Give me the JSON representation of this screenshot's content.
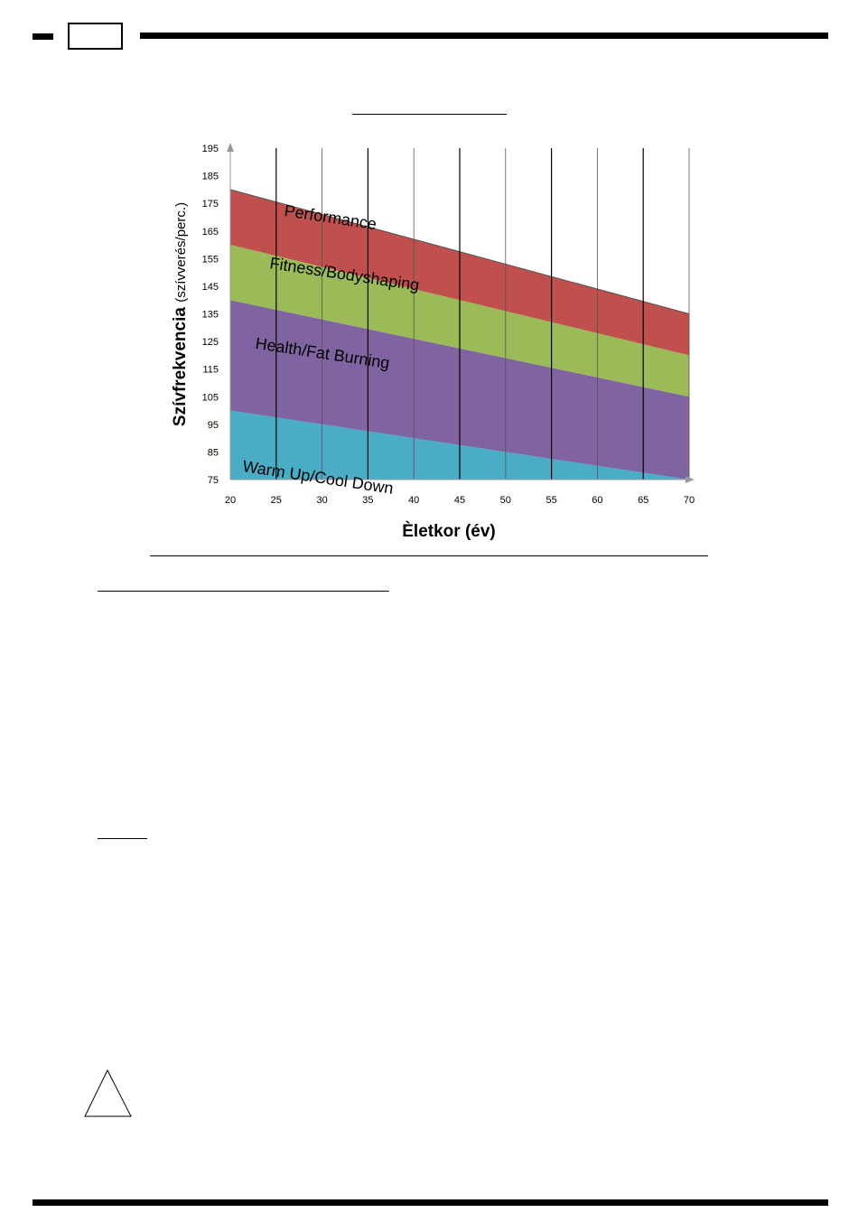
{
  "chart_data": {
    "type": "area",
    "title": "",
    "xlabel": "Èletkor (év)",
    "ylabel_bold": "Szívfrekvencia",
    "ylabel_unit": "(szívverés/perc.)",
    "x": [
      20,
      70
    ],
    "x_ticks": [
      20,
      25,
      30,
      35,
      40,
      45,
      50,
      55,
      60,
      65,
      70
    ],
    "y_ticks": [
      75,
      85,
      95,
      105,
      115,
      125,
      135,
      145,
      155,
      165,
      175,
      185,
      195
    ],
    "xlim": [
      20,
      70
    ],
    "ylim": [
      75,
      195
    ],
    "grid": "vertical",
    "zones": [
      {
        "name": "Warm Up/Cool Down",
        "lower": [
          75,
          75
        ],
        "upper": [
          100,
          75
        ],
        "color": "#4bacc6"
      },
      {
        "name": "Health/Fat Burning",
        "lower": [
          100,
          75
        ],
        "upper": [
          140,
          105
        ],
        "color": "#8064a2"
      },
      {
        "name": "Fitness/Bodyshaping",
        "lower": [
          140,
          105
        ],
        "upper": [
          160,
          120
        ],
        "color": "#9bbb59"
      },
      {
        "name": "Performance",
        "lower": [
          160,
          120
        ],
        "upper": [
          180,
          135
        ],
        "color": "#c0504d"
      }
    ]
  }
}
